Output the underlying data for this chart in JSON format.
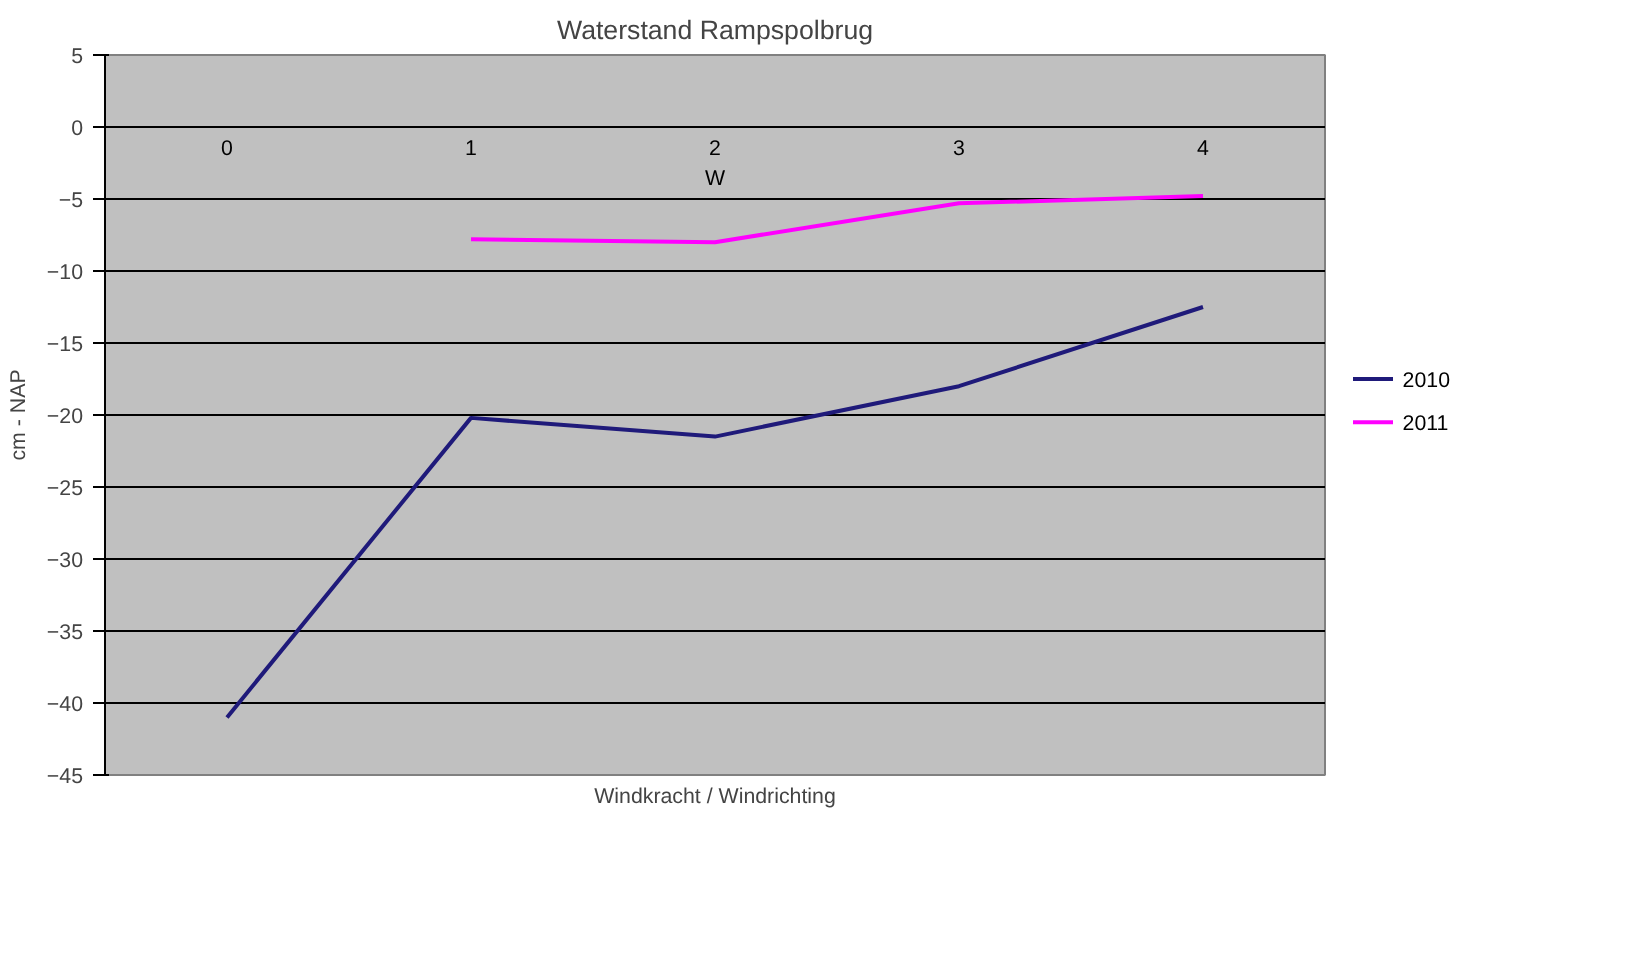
{
  "chart_data": {
    "type": "line",
    "title": "Waterstand Rampspolbrug",
    "xlabel": "Windkracht / Windrichting",
    "ylabel": "cm - NAP",
    "categories": [
      "0",
      "1",
      "2",
      "3",
      "4"
    ],
    "series": [
      {
        "name": "2010",
        "color": "#1f1a7a",
        "values": [
          -41,
          -20.2,
          -21.5,
          -18,
          -12.5
        ]
      },
      {
        "name": "2011",
        "color": "#ff00ff",
        "values": [
          null,
          -7.8,
          -8,
          -5.3,
          -4.8
        ]
      }
    ],
    "annotations": [
      "W"
    ],
    "ylim": [
      -45,
      5
    ],
    "yticks": [
      -45,
      -40,
      -35,
      -30,
      -25,
      -20,
      -15,
      -10,
      -5,
      0,
      5
    ],
    "grid": "y",
    "legend": "right",
    "marker": "none",
    "line_style": "solid"
  }
}
